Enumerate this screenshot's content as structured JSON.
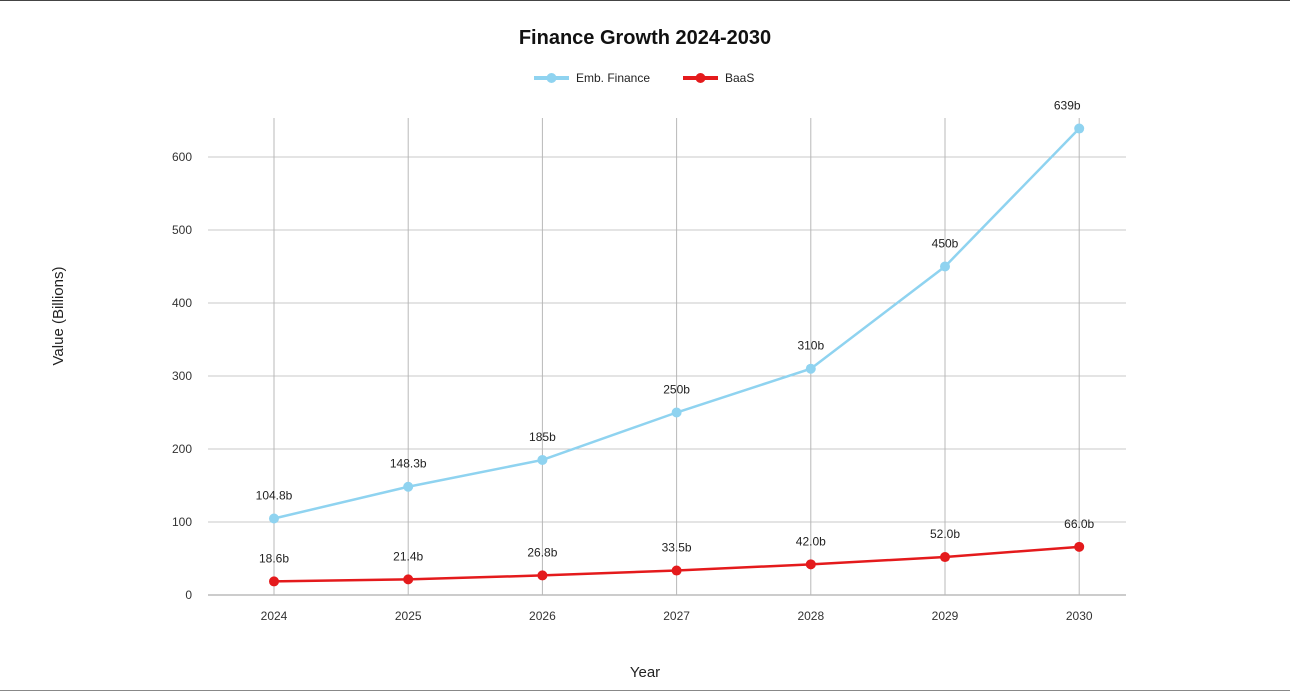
{
  "chart_data": {
    "type": "line",
    "title": "Finance Growth 2024-2030",
    "xlabel": "Year",
    "ylabel": "Value (Billions)",
    "categories": [
      "2024",
      "2025",
      "2026",
      "2027",
      "2028",
      "2029",
      "2030"
    ],
    "ylim": [
      0,
      650
    ],
    "yticks": [
      0,
      100,
      200,
      300,
      400,
      500,
      600
    ],
    "grid": true,
    "legend_position": "top",
    "series": [
      {
        "name": "Emb. Finance",
        "color": "#8fd3f0",
        "values": [
          104.8,
          148.3,
          185,
          250,
          310,
          450,
          639
        ],
        "labels": [
          "104.8b",
          "148.3b",
          "185b",
          "250b",
          "310b",
          "450b",
          "639b"
        ]
      },
      {
        "name": "BaaS",
        "color": "#e41a1c",
        "values": [
          18.6,
          21.4,
          26.8,
          33.5,
          42.0,
          52.0,
          66.0
        ],
        "labels": [
          "18.6b",
          "21.4b",
          "26.8b",
          "33.5b",
          "42.0b",
          "52.0b",
          "66.0b"
        ]
      }
    ]
  }
}
